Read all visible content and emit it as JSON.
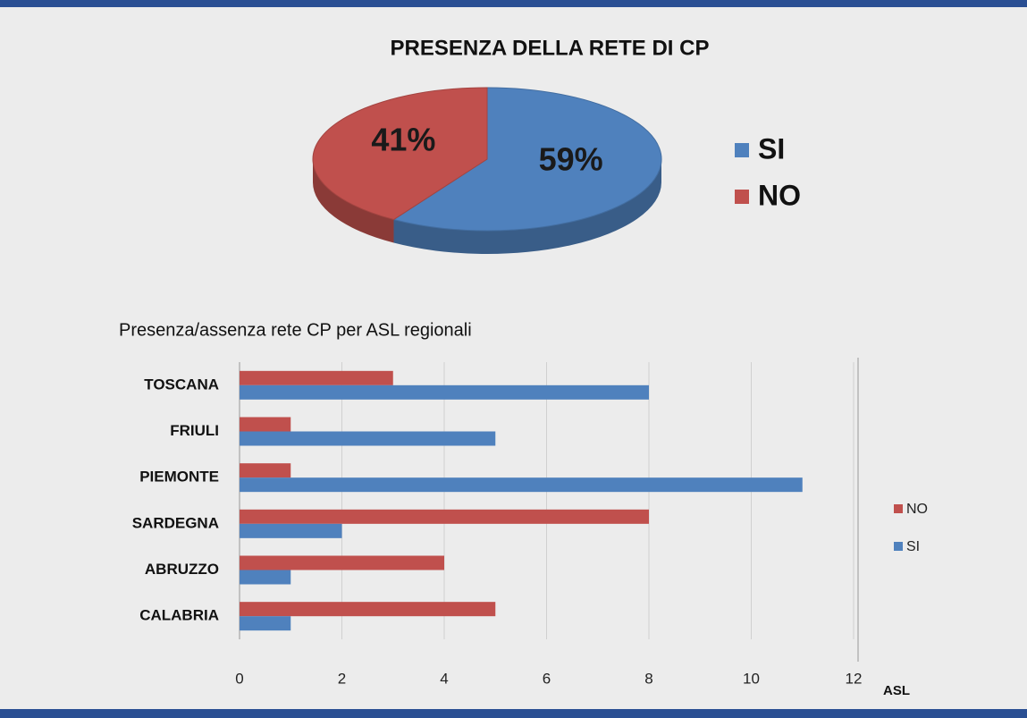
{
  "chart_data": [
    {
      "type": "pie",
      "title": "PRESENZA DELLA RETE DI CP",
      "categories": [
        "SI",
        "NO"
      ],
      "values": [
        59,
        41
      ],
      "value_labels": [
        "59%",
        "41%"
      ],
      "colors": [
        "#4f81bd",
        "#c0504d"
      ],
      "legend": "right"
    },
    {
      "type": "barh",
      "title": "Presenza/assenza rete CP per ASL regionali",
      "categories": [
        "TOSCANA",
        "FRIULI",
        "PIEMONTE",
        "SARDEGNA",
        "ABRUZZO",
        "CALABRIA"
      ],
      "series": [
        {
          "name": "NO",
          "color": "#c0504d",
          "values": [
            3,
            1,
            1,
            8,
            4,
            5
          ]
        },
        {
          "name": "SI",
          "color": "#4f81bd",
          "values": [
            8,
            5,
            11,
            2,
            1,
            1
          ]
        }
      ],
      "xlabel": "ASL",
      "xlim": [
        0,
        12
      ],
      "xticks": [
        0,
        2,
        4,
        6,
        8,
        10,
        12
      ],
      "grid": true,
      "legend": "right"
    }
  ]
}
